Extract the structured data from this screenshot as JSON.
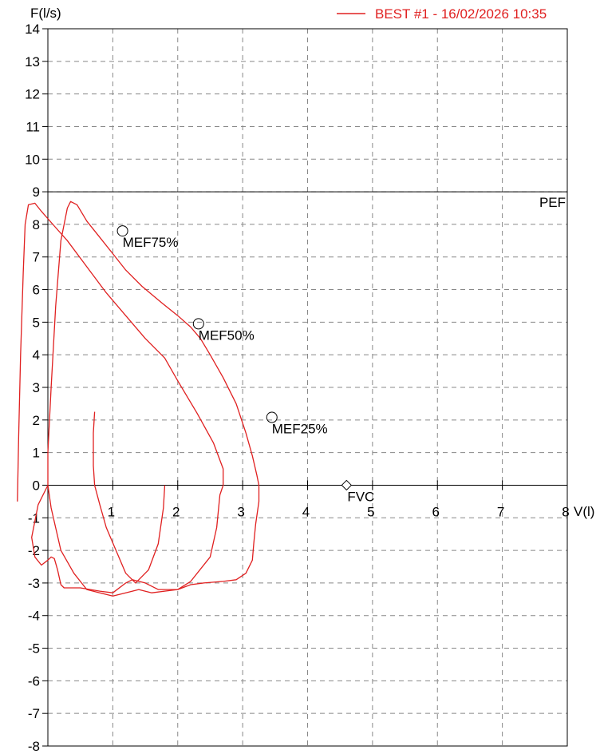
{
  "chart_data": {
    "type": "line",
    "title": "",
    "xlabel": "V(l)",
    "ylabel": "F(l/s)",
    "xlim": [
      0,
      8
    ],
    "ylim": [
      -8,
      14
    ],
    "x_ticks": [
      "1",
      "2",
      "3",
      "4",
      "5",
      "6",
      "7",
      "8"
    ],
    "y_ticks": [
      "14",
      "13",
      "12",
      "11",
      "10",
      "9",
      "8",
      "7",
      "6",
      "5",
      "4",
      "3",
      "2",
      "1",
      "0",
      "-1",
      "-2",
      "-3",
      "-4",
      "-5",
      "-6",
      "-7",
      "-8"
    ],
    "grid": true,
    "legend_position": "top-right",
    "series_color": "#e02020",
    "series": [
      {
        "name": "BEST #1 - 16/02/2026  10:35",
        "curves": [
          [
            [
              0.0,
              0.0
            ],
            [
              0.0,
              1.0
            ],
            [
              0.05,
              3.0
            ],
            [
              0.12,
              5.5
            ],
            [
              0.2,
              7.5
            ],
            [
              0.3,
              8.5
            ],
            [
              0.35,
              8.7
            ],
            [
              0.45,
              8.6
            ],
            [
              0.6,
              8.1
            ],
            [
              0.8,
              7.6
            ],
            [
              1.0,
              7.1
            ],
            [
              1.2,
              6.6
            ],
            [
              1.45,
              6.1
            ],
            [
              1.75,
              5.6
            ],
            [
              2.0,
              5.2
            ],
            [
              2.2,
              4.85
            ],
            [
              2.35,
              4.5
            ],
            [
              2.5,
              4.0
            ],
            [
              2.7,
              3.3
            ],
            [
              2.9,
              2.5
            ],
            [
              3.05,
              1.6
            ],
            [
              3.15,
              0.9
            ],
            [
              3.22,
              0.3
            ],
            [
              3.25,
              0.0
            ],
            [
              3.25,
              -0.5
            ],
            [
              3.2,
              -1.2
            ],
            [
              3.17,
              -1.8
            ],
            [
              3.15,
              -2.3
            ],
            [
              3.05,
              -2.7
            ],
            [
              2.9,
              -2.9
            ],
            [
              2.7,
              -2.95
            ],
            [
              2.4,
              -3.0
            ],
            [
              2.2,
              -3.05
            ],
            [
              2.0,
              -3.2
            ],
            [
              1.8,
              -3.25
            ],
            [
              1.6,
              -3.3
            ],
            [
              1.4,
              -3.2
            ],
            [
              1.2,
              -3.3
            ],
            [
              1.0,
              -3.4
            ],
            [
              0.8,
              -3.3
            ],
            [
              0.6,
              -3.2
            ],
            [
              0.4,
              -2.7
            ],
            [
              0.2,
              -2.0
            ],
            [
              0.05,
              -0.7
            ],
            [
              0.0,
              0.0
            ]
          ],
          [
            [
              0.0,
              0.0
            ],
            [
              -0.15,
              -0.6
            ],
            [
              -0.25,
              -1.6
            ],
            [
              -0.2,
              -2.2
            ],
            [
              -0.1,
              -2.45
            ],
            [
              0.0,
              -2.3
            ],
            [
              0.05,
              -2.2
            ],
            [
              0.1,
              -2.25
            ],
            [
              0.15,
              -2.6
            ],
            [
              0.2,
              -3.05
            ],
            [
              0.25,
              -3.15
            ],
            [
              0.5,
              -3.15
            ],
            [
              0.8,
              -3.25
            ],
            [
              1.0,
              -3.3
            ],
            [
              1.2,
              -3.0
            ],
            [
              1.3,
              -2.9
            ],
            [
              1.5,
              -3.0
            ],
            [
              1.7,
              -3.2
            ],
            [
              2.0,
              -3.2
            ],
            [
              2.2,
              -2.95
            ],
            [
              2.5,
              -2.2
            ],
            [
              2.6,
              -1.3
            ],
            [
              2.65,
              -0.3
            ],
            [
              2.7,
              0.0
            ],
            [
              2.7,
              0.5
            ],
            [
              2.55,
              1.3
            ],
            [
              2.3,
              2.2
            ],
            [
              2.0,
              3.2
            ],
            [
              1.8,
              3.9
            ],
            [
              1.5,
              4.5
            ],
            [
              1.2,
              5.2
            ],
            [
              0.9,
              5.9
            ],
            [
              0.6,
              6.7
            ],
            [
              0.3,
              7.5
            ],
            [
              0.1,
              7.95
            ],
            [
              -0.1,
              8.4
            ],
            [
              -0.2,
              8.65
            ],
            [
              -0.3,
              8.6
            ],
            [
              -0.35,
              8.0
            ],
            [
              -0.38,
              6.5
            ],
            [
              -0.42,
              4.0
            ],
            [
              -0.45,
              1.5
            ],
            [
              -0.47,
              -0.5
            ]
          ],
          [
            [
              0.72,
              2.25
            ],
            [
              0.7,
              1.6
            ],
            [
              0.7,
              0.6
            ],
            [
              0.72,
              0.0
            ],
            [
              0.8,
              -0.6
            ],
            [
              0.9,
              -1.3
            ],
            [
              1.05,
              -2.0
            ],
            [
              1.2,
              -2.7
            ],
            [
              1.35,
              -3.0
            ],
            [
              1.55,
              -2.6
            ],
            [
              1.7,
              -1.8
            ],
            [
              1.78,
              -0.7
            ],
            [
              1.8,
              0.0
            ]
          ]
        ]
      }
    ],
    "annotations": [
      {
        "label": "PEF",
        "type": "line",
        "y": 9
      },
      {
        "label": "MEF75%",
        "type": "circle",
        "x": 1.15,
        "y": 7.8
      },
      {
        "label": "MEF50%",
        "type": "circle",
        "x": 2.32,
        "y": 4.95
      },
      {
        "label": "MEF25%",
        "type": "circle",
        "x": 3.45,
        "y": 2.08
      },
      {
        "label": "FVC",
        "type": "diamond",
        "x": 4.6,
        "y": 0
      }
    ]
  }
}
